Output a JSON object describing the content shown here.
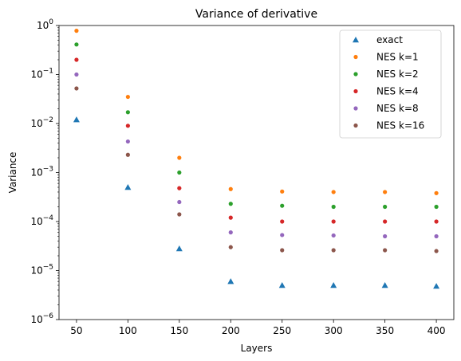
{
  "chart_data": {
    "type": "scatter",
    "title": "Variance of derivative",
    "xlabel": "Layers",
    "ylabel": "Variance",
    "yscale": "log",
    "ylim": [
      1e-06,
      1
    ],
    "xlim": [
      33,
      417
    ],
    "x": [
      50,
      100,
      150,
      200,
      250,
      300,
      350,
      400
    ],
    "xticks": [
      "50",
      "100",
      "150",
      "200",
      "250",
      "300",
      "350",
      "400"
    ],
    "yticks": [
      {
        "value": 1e-06,
        "base": "10",
        "exp": "−6"
      },
      {
        "value": 1e-05,
        "base": "10",
        "exp": "−5"
      },
      {
        "value": 0.0001,
        "base": "10",
        "exp": "−4"
      },
      {
        "value": 0.001,
        "base": "10",
        "exp": "−3"
      },
      {
        "value": 0.01,
        "base": "10",
        "exp": "−2"
      },
      {
        "value": 0.1,
        "base": "10",
        "exp": "−1"
      },
      {
        "value": 1,
        "base": "10",
        "exp": "0"
      }
    ],
    "grid": false,
    "legend_position": "top-right",
    "series": [
      {
        "name": "exact",
        "marker": "triangle",
        "color": "#1f77b4",
        "values": [
          0.012,
          0.0005,
          2.8e-05,
          6e-06,
          5e-06,
          5e-06,
          5e-06,
          4.8e-06
        ]
      },
      {
        "name": "NES k=1",
        "marker": "circle",
        "color": "#ff7f0e",
        "values": [
          0.78,
          0.035,
          0.002,
          0.00046,
          0.00041,
          0.0004,
          0.0004,
          0.00038
        ]
      },
      {
        "name": "NES k=2",
        "marker": "circle",
        "color": "#2ca02c",
        "values": [
          0.41,
          0.017,
          0.001,
          0.00023,
          0.00021,
          0.0002,
          0.0002,
          0.0002
        ]
      },
      {
        "name": "NES k=4",
        "marker": "circle",
        "color": "#d62728",
        "values": [
          0.2,
          0.009,
          0.00048,
          0.00012,
          0.0001,
          0.0001,
          0.0001,
          0.0001
        ]
      },
      {
        "name": "NES k=8",
        "marker": "circle",
        "color": "#9467bd",
        "values": [
          0.1,
          0.0043,
          0.00025,
          6e-05,
          5.3e-05,
          5.2e-05,
          5e-05,
          5e-05
        ]
      },
      {
        "name": "NES k=16",
        "marker": "circle",
        "color": "#8c564b",
        "values": [
          0.052,
          0.0023,
          0.00014,
          3e-05,
          2.6e-05,
          2.6e-05,
          2.6e-05,
          2.5e-05
        ]
      }
    ]
  }
}
